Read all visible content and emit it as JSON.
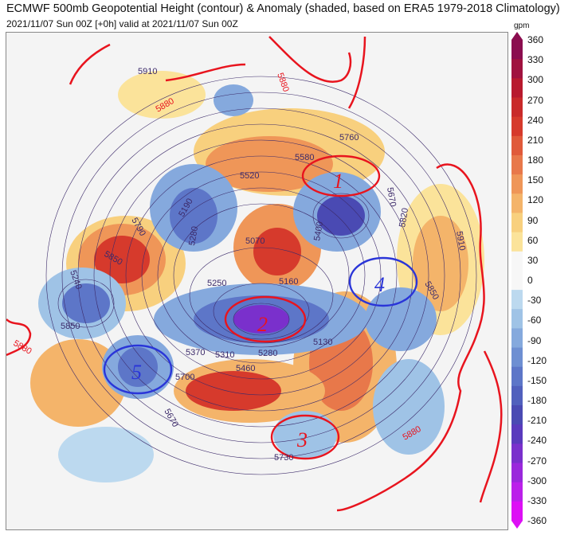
{
  "header": {
    "title": "ECMWF 500mb Geopotential Height (contour) & Anomaly (shaded, based on ERA5 1979-2018 Climatology)",
    "subtitle": "2021/11/07 Sun 00Z [+0h] valid at 2021/11/07 Sun 00Z"
  },
  "colorbar": {
    "unit": "gpm",
    "ticks": [
      "360",
      "330",
      "300",
      "270",
      "240",
      "210",
      "180",
      "150",
      "120",
      "90",
      "60",
      "30",
      "0",
      "-30",
      "-60",
      "-90",
      "-120",
      "-150",
      "-180",
      "-210",
      "-240",
      "-270",
      "-300",
      "-330",
      "-360"
    ],
    "colors": [
      "#8b0d4f",
      "#a0123f",
      "#b81a2e",
      "#c92a2a",
      "#d63a2c",
      "#e05a3a",
      "#e8784a",
      "#ef9658",
      "#f4b46a",
      "#f8d07e",
      "#fbe39a",
      "#f7f7f7",
      "#f7f7f7",
      "#bcd9ef",
      "#9fc3e6",
      "#85a9dd",
      "#6e8fd2",
      "#5d76c8",
      "#5160bd",
      "#4a4ab3",
      "#5a3abd",
      "#7a30cc",
      "#9a28dc",
      "#bb20ea",
      "#dd10f5"
    ]
  },
  "map": {
    "contour_labels": [
      "5910",
      "5880",
      "5880",
      "5760",
      "5580",
      "5520",
      "5790",
      "5190",
      "5280",
      "5250",
      "5850",
      "5070",
      "5400",
      "5670",
      "5820",
      "5910",
      "5850",
      "5240",
      "5160",
      "5130",
      "5370",
      "5310",
      "5280",
      "5460",
      "5700",
      "5850",
      "5880",
      "5670",
      "5730",
      "5880"
    ],
    "annotations": [
      "1",
      "2",
      "3",
      "4",
      "5"
    ]
  }
}
